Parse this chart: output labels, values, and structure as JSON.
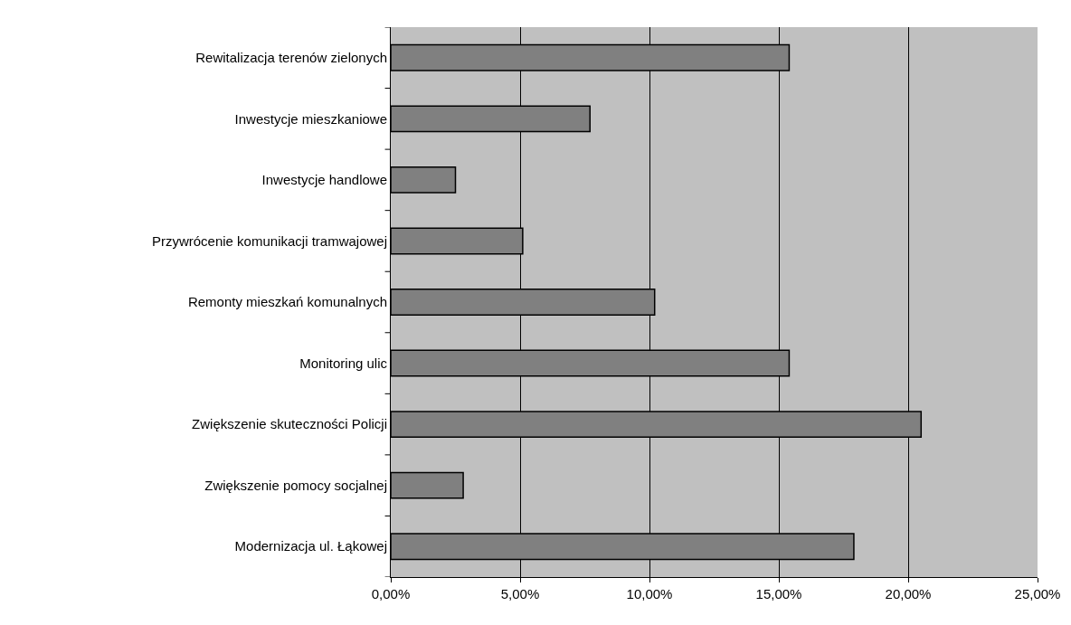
{
  "chart_data": {
    "type": "bar",
    "orientation": "horizontal",
    "categories": [
      "Rewitalizacja terenów zielonych",
      "Inwestycje mieszkaniowe",
      "Inwestycje handlowe",
      "Przywrócenie komunikacji tramwajowej",
      "Remonty mieszkań komunalnych",
      "Monitoring ulic",
      "Zwiększenie skuteczności Policji",
      "Zwiększenie pomocy socjalnej",
      "Modernizacja ul. Łąkowej"
    ],
    "values": [
      15.4,
      7.7,
      2.5,
      5.1,
      10.2,
      15.4,
      20.5,
      2.8,
      17.9
    ],
    "color": "#808080",
    "xlim": [
      0,
      25
    ],
    "xticks": [
      {
        "value": 0,
        "label": "0,00%"
      },
      {
        "value": 5,
        "label": "5,00%"
      },
      {
        "value": 10,
        "label": "10,00%"
      },
      {
        "value": 15,
        "label": "15,00%"
      },
      {
        "value": 20,
        "label": "20,00%"
      },
      {
        "value": 25,
        "label": "25,00%"
      }
    ],
    "grid": "x"
  }
}
